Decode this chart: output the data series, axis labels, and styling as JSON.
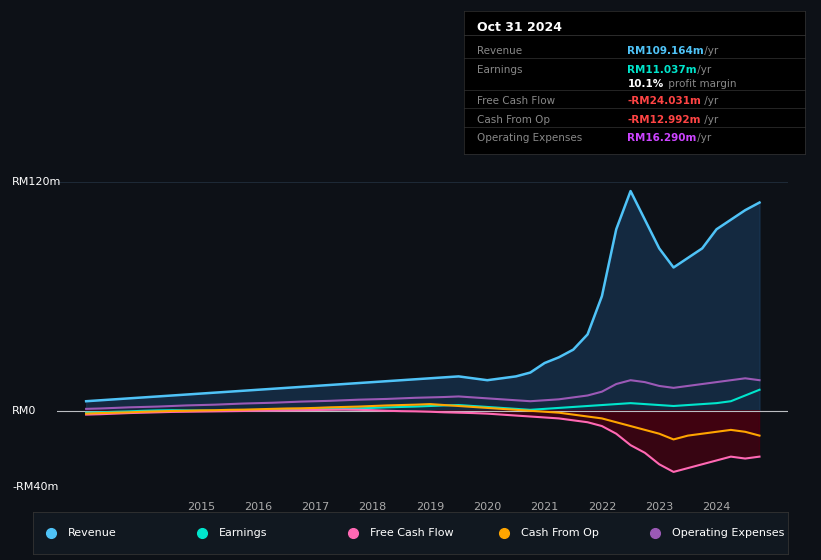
{
  "bg_color": "#0d1117",
  "chart_bg": "#0d1117",
  "grid_color": "#1e2a38",
  "title": "Oct 31 2024",
  "info_box_rows": [
    {
      "label": "Revenue",
      "value": "RM109.164m",
      "unit": " /yr",
      "value_color": "#4fc3f7"
    },
    {
      "label": "Earnings",
      "value": "RM11.037m",
      "unit": " /yr",
      "value_color": "#00e5cc"
    },
    {
      "label": "",
      "value": "10.1%",
      "unit": " profit margin",
      "value_color": "#ffffff"
    },
    {
      "label": "Free Cash Flow",
      "value": "-RM24.031m",
      "unit": " /yr",
      "value_color": "#ff4444"
    },
    {
      "label": "Cash From Op",
      "value": "-RM12.992m",
      "unit": " /yr",
      "value_color": "#ff4444"
    },
    {
      "label": "Operating Expenses",
      "value": "RM16.290m",
      "unit": " /yr",
      "value_color": "#cc44ff"
    }
  ],
  "years": [
    2013.0,
    2013.25,
    2013.5,
    2013.75,
    2014.0,
    2014.25,
    2014.5,
    2014.75,
    2015.0,
    2015.25,
    2015.5,
    2015.75,
    2016.0,
    2016.25,
    2016.5,
    2016.75,
    2017.0,
    2017.25,
    2017.5,
    2017.75,
    2018.0,
    2018.25,
    2018.5,
    2018.75,
    2019.0,
    2019.25,
    2019.5,
    2019.75,
    2020.0,
    2020.25,
    2020.5,
    2020.75,
    2021.0,
    2021.25,
    2021.5,
    2021.75,
    2022.0,
    2022.25,
    2022.5,
    2022.75,
    2023.0,
    2023.25,
    2023.5,
    2023.75,
    2024.0,
    2024.25,
    2024.5,
    2024.75
  ],
  "revenue": [
    5,
    5.5,
    6,
    6.5,
    7,
    7.5,
    8,
    8.5,
    9,
    9.5,
    10,
    10.5,
    11,
    11.5,
    12,
    12.5,
    13,
    13.5,
    14,
    14.5,
    15,
    15.5,
    16,
    16.5,
    17,
    17.5,
    18,
    17,
    16,
    17,
    18,
    20,
    25,
    28,
    32,
    40,
    60,
    95,
    115,
    100,
    85,
    75,
    80,
    85,
    95,
    100,
    105,
    109
  ],
  "earnings": [
    -1,
    -0.8,
    -0.5,
    -0.3,
    0,
    0.2,
    0.3,
    0.2,
    0.1,
    0,
    -0.1,
    0,
    0.2,
    0.3,
    0.5,
    0.6,
    0.8,
    1,
    1.2,
    1.3,
    1.5,
    1.8,
    2,
    2.2,
    2.5,
    2.8,
    3,
    2.5,
    2,
    1.5,
    1,
    0.5,
    1,
    1.5,
    2,
    2.5,
    3,
    3.5,
    4,
    3.5,
    3,
    2.5,
    3,
    3.5,
    4,
    5,
    8,
    11
  ],
  "free_cash_flow": [
    -2,
    -1.8,
    -1.5,
    -1.2,
    -1,
    -0.8,
    -0.6,
    -0.5,
    -0.4,
    -0.3,
    -0.2,
    -0.1,
    0,
    0.1,
    0.2,
    0.3,
    0.4,
    0.5,
    0.6,
    0.5,
    0.3,
    0,
    -0.2,
    -0.3,
    -0.5,
    -0.8,
    -1,
    -1.2,
    -1.5,
    -2,
    -2.5,
    -3,
    -3.5,
    -4,
    -5,
    -6,
    -8,
    -12,
    -18,
    -22,
    -28,
    -32,
    -30,
    -28,
    -26,
    -24,
    -25,
    -24
  ],
  "cash_from_op": [
    -1.5,
    -1.2,
    -1,
    -0.8,
    -0.5,
    -0.3,
    -0.1,
    0,
    0.2,
    0.3,
    0.5,
    0.6,
    0.8,
    1,
    1.2,
    1.3,
    1.5,
    1.8,
    2,
    2.2,
    2.5,
    2.8,
    3,
    3.2,
    3.5,
    3,
    2.5,
    2,
    1.5,
    1,
    0.5,
    0,
    -0.5,
    -1,
    -2,
    -3,
    -4,
    -6,
    -8,
    -10,
    -12,
    -15,
    -13,
    -12,
    -11,
    -10,
    -11,
    -13
  ],
  "op_expenses": [
    1,
    1.2,
    1.5,
    1.8,
    2,
    2.2,
    2.5,
    2.8,
    3,
    3.2,
    3.5,
    3.8,
    4,
    4.2,
    4.5,
    4.8,
    5,
    5.2,
    5.5,
    5.8,
    6,
    6.2,
    6.5,
    6.8,
    7,
    7.2,
    7.5,
    7,
    6.5,
    6,
    5.5,
    5,
    5.5,
    6,
    7,
    8,
    10,
    14,
    16,
    15,
    13,
    12,
    13,
    14,
    15,
    16,
    17,
    16
  ],
  "revenue_color": "#4fc3f7",
  "earnings_color": "#00e5cc",
  "free_cash_flow_color": "#ff69b4",
  "cash_from_op_color": "#ffa500",
  "op_expenses_color": "#9b59b6",
  "revenue_fill": "#1a3a5c",
  "negative_fill": "#4a0010",
  "ylim": [
    -40,
    130
  ],
  "y_ticks": [
    -40,
    0,
    120
  ],
  "y_labels": [
    "-RM40m",
    "RM0",
    "RM120m"
  ],
  "x_ticks": [
    2015,
    2016,
    2017,
    2018,
    2019,
    2020,
    2021,
    2022,
    2023,
    2024
  ],
  "legend_items": [
    {
      "label": "Revenue",
      "color": "#4fc3f7"
    },
    {
      "label": "Earnings",
      "color": "#00e5cc"
    },
    {
      "label": "Free Cash Flow",
      "color": "#ff69b4"
    },
    {
      "label": "Cash From Op",
      "color": "#ffa500"
    },
    {
      "label": "Operating Expenses",
      "color": "#9b59b6"
    }
  ]
}
